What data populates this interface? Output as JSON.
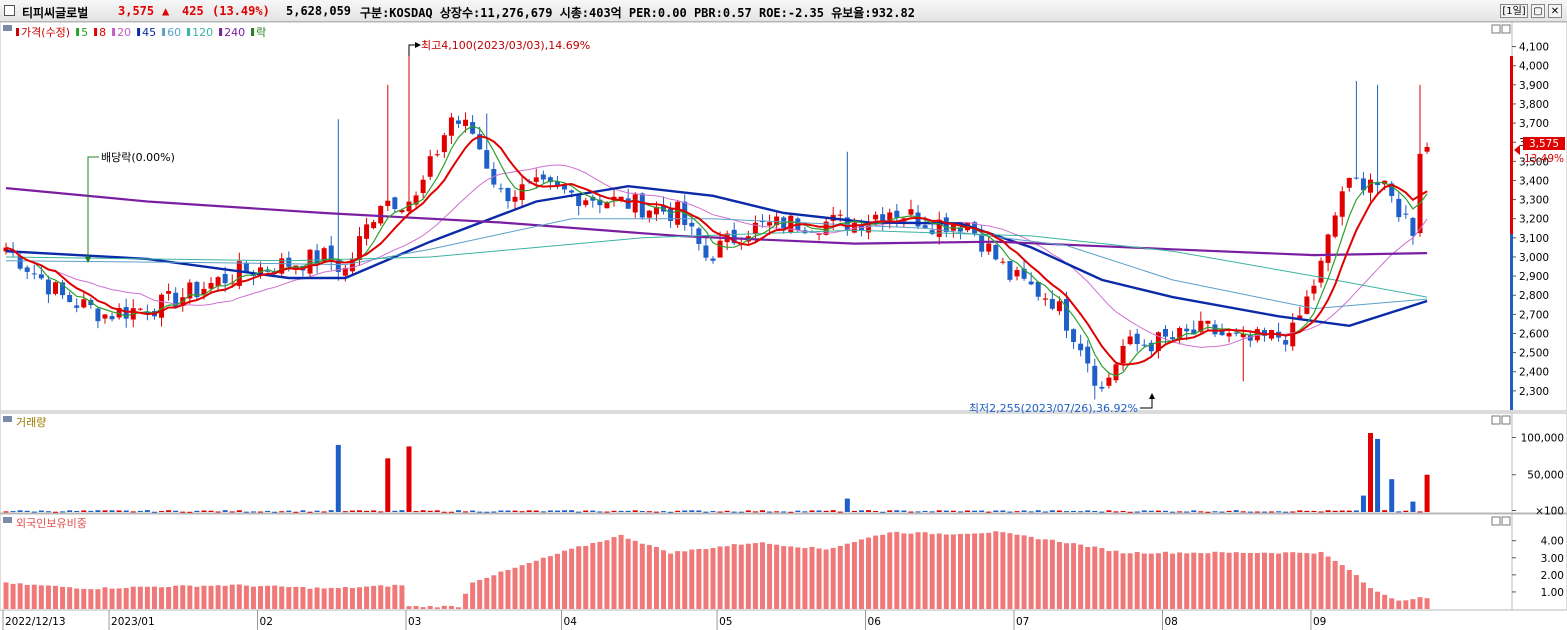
{
  "header": {
    "stock_name": "티피씨글로벌",
    "price": "3,575",
    "change_arrow": "▲",
    "change": "425",
    "change_pct": "(13.49%)",
    "volume": "5,628,059",
    "info": "구분:KOSDAQ 상장수:11,276,679 시총:403억 PER:0.00 PBR:0.57 ROE:-2.35 유보율:932.82",
    "period_button": "[1일]",
    "restore_label": "▢",
    "close_label": "✕"
  },
  "price_panel": {
    "legend": [
      {
        "label": "가격(수정)",
        "color": "#d00000"
      },
      {
        "label": "5",
        "color": "#2ca02c"
      },
      {
        "label": "8",
        "color": "#e00000"
      },
      {
        "label": "20",
        "color": "#c060c0"
      },
      {
        "label": "45",
        "color": "#0a2aa8"
      },
      {
        "label": "60",
        "color": "#5aa0c8"
      },
      {
        "label": "120",
        "color": "#3cb3a0"
      },
      {
        "label": "240",
        "color": "#7a1fa2"
      },
      {
        "label": "락",
        "color": "#208020"
      }
    ],
    "y_ticks": [
      "4,100",
      "4,000",
      "3,900",
      "3,800",
      "3,700",
      "3,600",
      "3,500",
      "3,400",
      "3,300",
      "3,200",
      "3,100",
      "3,000",
      "2,900",
      "2,800",
      "2,700",
      "2,600",
      "2,500",
      "2,400",
      "2,300"
    ],
    "current_price_tag": "3,575",
    "current_pct_tag": "13.49%",
    "annotation_high": "최고4,100(2023/03/03),14.69%",
    "annotation_low": "최저2,255(2023/07/26),36.92%",
    "annotation_dividend": "배당락(0.00%)",
    "colors": {
      "up": "#e00000",
      "down": "#1f5fc8"
    }
  },
  "volume_panel": {
    "legend": "거래량",
    "y_ticks": [
      "100,000",
      "50,000",
      "×100"
    ]
  },
  "foreign_panel": {
    "legend": "외국인보유비중",
    "y_ticks": [
      "4.00",
      "3.00",
      "2.00",
      "1.00"
    ],
    "bar_color": "#f07878"
  },
  "x_axis": {
    "labels": [
      "2022/12/13",
      "2023/01",
      "02",
      "03",
      "04",
      "05",
      "06",
      "07",
      "08",
      "09"
    ]
  },
  "chart_data": {
    "type": "candlestick",
    "title": "티피씨글로벌",
    "y_range": [
      2200,
      4150
    ],
    "anchors": [
      {
        "i": 0,
        "price": 3050
      },
      {
        "i": 8,
        "price": 2790
      },
      {
        "i": 14,
        "price": 2700
      },
      {
        "i": 22,
        "price": 2750
      },
      {
        "i": 33,
        "price": 2920
      },
      {
        "i": 45,
        "price": 3000
      },
      {
        "i": 48,
        "price": 2930
      },
      {
        "i": 53,
        "price": 3300
      },
      {
        "i": 58,
        "price": 3300
      },
      {
        "i": 63,
        "price": 3730
      },
      {
        "i": 66,
        "price": 3650
      },
      {
        "i": 70,
        "price": 3330
      },
      {
        "i": 75,
        "price": 3360
      },
      {
        "i": 80,
        "price": 3330
      },
      {
        "i": 88,
        "price": 3280
      },
      {
        "i": 95,
        "price": 3230
      },
      {
        "i": 99,
        "price": 3000
      },
      {
        "i": 105,
        "price": 3150
      },
      {
        "i": 112,
        "price": 3180
      },
      {
        "i": 120,
        "price": 3180
      },
      {
        "i": 125,
        "price": 3250
      },
      {
        "i": 131,
        "price": 3180
      },
      {
        "i": 136,
        "price": 3180
      },
      {
        "i": 142,
        "price": 2900
      },
      {
        "i": 148,
        "price": 2780
      },
      {
        "i": 152,
        "price": 2550
      },
      {
        "i": 155,
        "price": 2300
      },
      {
        "i": 158,
        "price": 2530
      },
      {
        "i": 165,
        "price": 2570
      },
      {
        "i": 170,
        "price": 2620
      },
      {
        "i": 175,
        "price": 2550
      },
      {
        "i": 182,
        "price": 2600
      },
      {
        "i": 186,
        "price": 2950
      },
      {
        "i": 189,
        "price": 3350
      },
      {
        "i": 193,
        "price": 3420
      },
      {
        "i": 196,
        "price": 3300
      },
      {
        "i": 199,
        "price": 3150
      },
      {
        "i": 200,
        "price": 3575
      }
    ],
    "spikes": [
      {
        "i": 47,
        "high": 3720
      },
      {
        "i": 54,
        "high": 3900
      },
      {
        "i": 57,
        "high": 4100
      },
      {
        "i": 68,
        "high": 3750
      },
      {
        "i": 119,
        "high": 3550
      },
      {
        "i": 154,
        "low": 2255
      },
      {
        "i": 175,
        "low": 2350
      },
      {
        "i": 191,
        "high": 3920
      },
      {
        "i": 194,
        "high": 3900
      },
      {
        "i": 200,
        "high": 3900
      }
    ],
    "volume_spikes": [
      {
        "i": 47,
        "v": 90000
      },
      {
        "i": 54,
        "v": 72000
      },
      {
        "i": 57,
        "v": 88000
      },
      {
        "i": 119,
        "v": 18000
      },
      {
        "i": 192,
        "v": 22000
      },
      {
        "i": 193,
        "v": 106000
      },
      {
        "i": 194,
        "v": 98000
      },
      {
        "i": 196,
        "v": 44000
      },
      {
        "i": 199,
        "v": 14000
      },
      {
        "i": 201,
        "v": 50000
      }
    ],
    "foreign_anchors": [
      {
        "i": 0,
        "v": 1.5
      },
      {
        "i": 12,
        "v": 1.2
      },
      {
        "i": 20,
        "v": 1.3
      },
      {
        "i": 32,
        "v": 1.4
      },
      {
        "i": 46,
        "v": 1.2
      },
      {
        "i": 56,
        "v": 1.4
      },
      {
        "i": 57,
        "v": 0.15
      },
      {
        "i": 64,
        "v": 0.15
      },
      {
        "i": 66,
        "v": 1.6
      },
      {
        "i": 72,
        "v": 2.4
      },
      {
        "i": 80,
        "v": 3.5
      },
      {
        "i": 87,
        "v": 4.3
      },
      {
        "i": 94,
        "v": 3.3
      },
      {
        "i": 106,
        "v": 3.9
      },
      {
        "i": 116,
        "v": 3.5
      },
      {
        "i": 125,
        "v": 4.5
      },
      {
        "i": 133,
        "v": 4.4
      },
      {
        "i": 140,
        "v": 4.5
      },
      {
        "i": 150,
        "v": 3.9
      },
      {
        "i": 158,
        "v": 3.3
      },
      {
        "i": 180,
        "v": 3.3
      },
      {
        "i": 186,
        "v": 3.3
      },
      {
        "i": 190,
        "v": 2.3
      },
      {
        "i": 193,
        "v": 1.2
      },
      {
        "i": 197,
        "v": 0.5
      },
      {
        "i": 200,
        "v": 0.7
      },
      {
        "i": 203,
        "v": 0.4
      }
    ],
    "ma_lines": [
      {
        "name": "45",
        "color": "#0a2aa8",
        "width": 2.4,
        "points": [
          [
            0,
            3030
          ],
          [
            20,
            2990
          ],
          [
            40,
            2890
          ],
          [
            48,
            2890
          ],
          [
            60,
            3080
          ],
          [
            75,
            3290
          ],
          [
            88,
            3370
          ],
          [
            100,
            3320
          ],
          [
            110,
            3230
          ],
          [
            122,
            3180
          ],
          [
            135,
            3175
          ],
          [
            145,
            3050
          ],
          [
            155,
            2880
          ],
          [
            165,
            2790
          ],
          [
            180,
            2690
          ],
          [
            190,
            2640
          ],
          [
            201,
            2770
          ]
        ]
      },
      {
        "name": "240",
        "color": "#7a1fa2",
        "width": 2.2,
        "points": [
          [
            0,
            3360
          ],
          [
            20,
            3290
          ],
          [
            45,
            3230
          ],
          [
            70,
            3180
          ],
          [
            95,
            3110
          ],
          [
            120,
            3070
          ],
          [
            140,
            3080
          ],
          [
            165,
            3040
          ],
          [
            185,
            3010
          ],
          [
            201,
            3020
          ]
        ]
      },
      {
        "name": "60",
        "color": "#5aa0c8",
        "width": 1,
        "points": [
          [
            0,
            2980
          ],
          [
            30,
            2970
          ],
          [
            48,
            2960
          ],
          [
            60,
            3040
          ],
          [
            80,
            3200
          ],
          [
            100,
            3200
          ],
          [
            130,
            3150
          ],
          [
            150,
            3060
          ],
          [
            165,
            2880
          ],
          [
            185,
            2730
          ],
          [
            201,
            2780
          ]
        ]
      },
      {
        "name": "120",
        "color": "#3cb3a0",
        "width": 1,
        "points": [
          [
            0,
            3000
          ],
          [
            40,
            2980
          ],
          [
            60,
            3000
          ],
          [
            90,
            3100
          ],
          [
            120,
            3140
          ],
          [
            145,
            3110
          ],
          [
            165,
            3030
          ],
          [
            185,
            2900
          ],
          [
            201,
            2790
          ]
        ]
      }
    ],
    "x_label_indices": [
      0,
      15,
      36,
      57,
      79,
      101,
      122,
      143,
      164,
      185
    ]
  }
}
